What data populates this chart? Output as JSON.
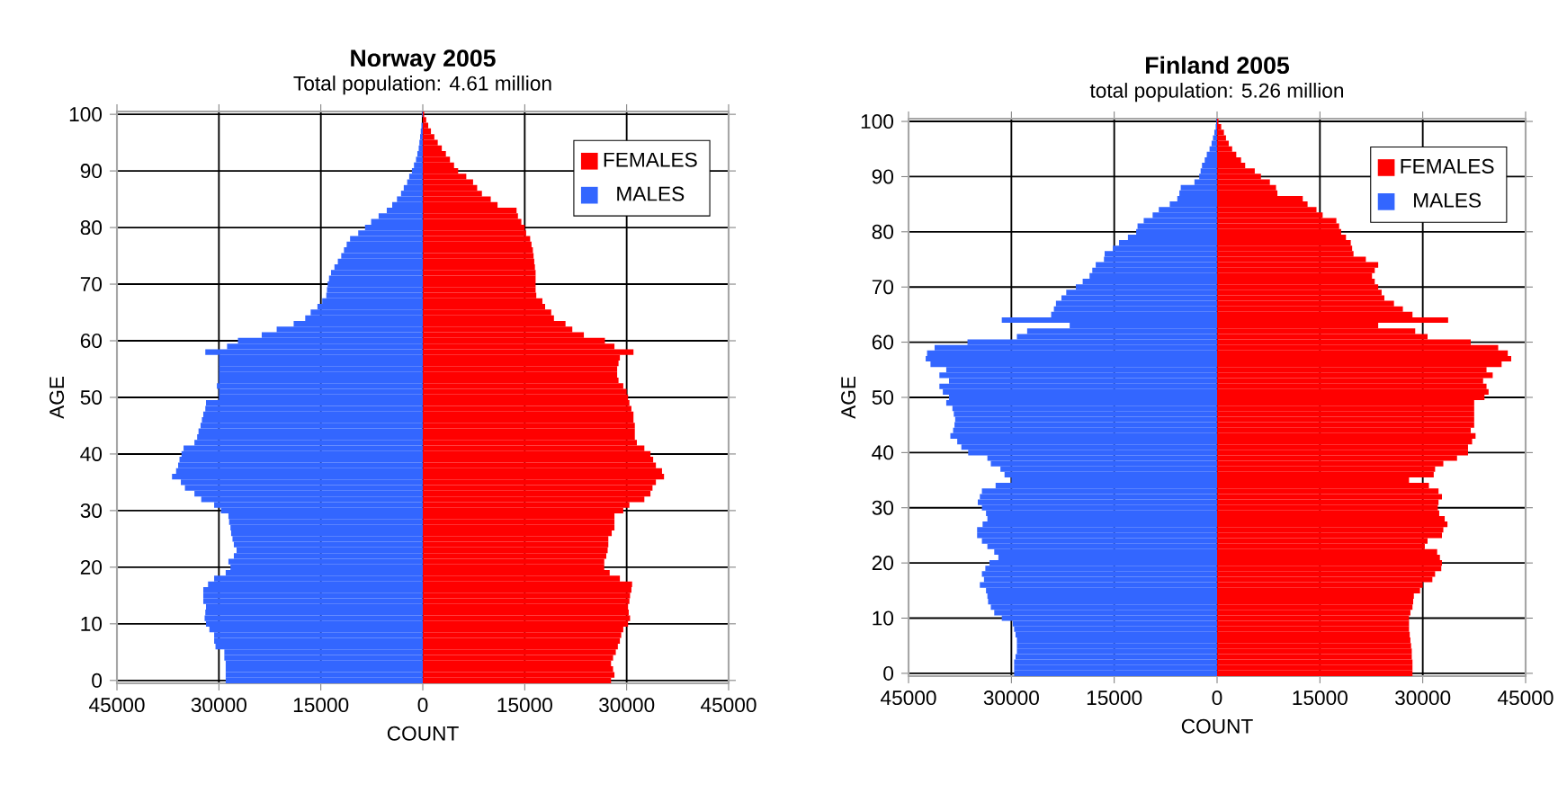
{
  "chart_data": [
    {
      "type": "bar",
      "orientation": "horizontal",
      "stacked": true,
      "title": "Norway 2005",
      "subtitle": "Total population: 4.61 million",
      "xlabel": "COUNT",
      "ylabel": "AGE",
      "x": [
        0,
        1,
        2,
        3,
        4,
        5,
        6,
        7,
        8,
        9,
        10,
        11,
        12,
        13,
        14,
        15,
        16,
        17,
        18,
        19,
        20,
        21,
        22,
        23,
        24,
        25,
        26,
        27,
        28,
        29,
        30,
        31,
        32,
        33,
        34,
        35,
        36,
        37,
        38,
        39,
        40,
        41,
        42,
        43,
        44,
        45,
        46,
        47,
        48,
        49,
        50,
        51,
        52,
        53,
        54,
        55,
        56,
        57,
        58,
        59,
        60,
        61,
        62,
        63,
        64,
        65,
        66,
        67,
        68,
        69,
        70,
        71,
        72,
        73,
        74,
        75,
        76,
        77,
        78,
        79,
        80,
        81,
        82,
        83,
        84,
        85,
        86,
        87,
        88,
        89,
        90,
        91,
        92,
        93,
        94,
        95,
        96,
        97,
        98,
        99,
        100
      ],
      "series": [
        {
          "name": "FEMALES",
          "color": "#ff0000",
          "values": [
            27700,
            28200,
            28000,
            27700,
            28000,
            28400,
            28700,
            29000,
            29200,
            29500,
            30200,
            30500,
            30300,
            30200,
            30400,
            30500,
            30700,
            30800,
            29000,
            27500,
            26700,
            26700,
            27000,
            27200,
            27300,
            27300,
            27800,
            28200,
            28200,
            28200,
            29500,
            30400,
            32600,
            33500,
            33800,
            34300,
            35500,
            35200,
            34300,
            33900,
            33500,
            32600,
            31500,
            31200,
            31200,
            31200,
            31000,
            31000,
            30700,
            30400,
            30200,
            30000,
            29500,
            28800,
            28600,
            28600,
            28800,
            29000,
            31000,
            28200,
            26800,
            23700,
            22000,
            21000,
            19300,
            18900,
            18000,
            17600,
            16700,
            16600,
            16600,
            16600,
            16600,
            16500,
            16400,
            16300,
            16200,
            16000,
            15800,
            15200,
            15000,
            14500,
            14000,
            13800,
            11000,
            10000,
            8700,
            8000,
            7400,
            6400,
            5200,
            4600,
            4000,
            3400,
            2800,
            2200,
            1700,
            1200,
            800,
            500,
            200
          ]
        },
        {
          "name": "MALES",
          "color": "#3366ff",
          "values": [
            -29000,
            -29000,
            -29000,
            -29000,
            -29200,
            -29200,
            -30500,
            -30700,
            -30700,
            -31400,
            -31900,
            -32100,
            -32000,
            -31900,
            -32300,
            -32300,
            -32300,
            -31600,
            -30700,
            -29000,
            -28300,
            -28600,
            -27800,
            -27400,
            -27800,
            -28000,
            -28200,
            -28300,
            -28500,
            -28600,
            -29700,
            -30700,
            -32600,
            -33600,
            -35000,
            -35600,
            -36900,
            -36300,
            -36000,
            -35800,
            -35500,
            -35200,
            -33600,
            -33200,
            -33000,
            -32700,
            -32500,
            -32300,
            -32000,
            -31900,
            -30000,
            -30000,
            -30300,
            -30000,
            -30000,
            -30000,
            -30000,
            -30000,
            -32000,
            -28800,
            -27200,
            -23700,
            -21500,
            -19000,
            -17300,
            -16500,
            -15500,
            -14800,
            -14200,
            -14100,
            -14000,
            -13800,
            -13500,
            -13000,
            -12500,
            -12000,
            -11600,
            -11200,
            -10700,
            -9500,
            -8500,
            -7600,
            -6500,
            -5300,
            -4500,
            -3800,
            -3200,
            -2800,
            -2300,
            -2000,
            -1600,
            -1300,
            -1000,
            -800,
            -600,
            -500,
            -400,
            -300,
            -200,
            null,
            -100
          ]
        }
      ],
      "xlim": [
        -45000,
        45000
      ],
      "xticks": [
        {
          "value": -45000,
          "label": "45000"
        },
        {
          "value": -30000,
          "label": "30000"
        },
        {
          "value": -15000,
          "label": "15000"
        },
        0,
        15000,
        30000,
        45000
      ],
      "ylim": [
        -0.5,
        100.5
      ],
      "yticks": [
        0,
        10,
        20,
        30,
        40,
        50,
        60,
        70,
        80,
        90,
        100
      ],
      "grid": true,
      "legend": "top right"
    },
    {
      "type": "bar",
      "orientation": "horizontal",
      "stacked": true,
      "title": "Finland 2005",
      "subtitle": "total population: 5.26 million",
      "xlabel": "COUNT",
      "ylabel": "AGE",
      "x": [
        0,
        1,
        2,
        3,
        4,
        5,
        6,
        7,
        8,
        9,
        10,
        11,
        12,
        13,
        14,
        15,
        16,
        17,
        18,
        19,
        20,
        21,
        22,
        23,
        24,
        25,
        26,
        27,
        28,
        29,
        30,
        31,
        32,
        33,
        34,
        35,
        36,
        37,
        38,
        39,
        40,
        41,
        42,
        43,
        44,
        45,
        46,
        47,
        48,
        49,
        50,
        51,
        52,
        53,
        54,
        55,
        56,
        57,
        58,
        59,
        60,
        61,
        62,
        63,
        64,
        65,
        66,
        67,
        68,
        69,
        70,
        71,
        72,
        73,
        74,
        75,
        76,
        77,
        78,
        79,
        80,
        81,
        82,
        83,
        84,
        85,
        86,
        87,
        88,
        89,
        90,
        91,
        92,
        93,
        94,
        95,
        96,
        97,
        98,
        99,
        100
      ],
      "series": [
        {
          "name": "FEMALES",
          "color": "#ff0000",
          "values": [
            28500,
            28500,
            28500,
            28400,
            28400,
            28300,
            28200,
            28100,
            28000,
            28000,
            28000,
            28200,
            28500,
            28600,
            28700,
            29600,
            30000,
            31400,
            31800,
            32700,
            32800,
            32500,
            32100,
            30300,
            30700,
            32800,
            33000,
            33600,
            33200,
            32400,
            32200,
            32300,
            32800,
            32300,
            30900,
            28000,
            31600,
            31800,
            33000,
            35000,
            36600,
            36600,
            37200,
            37700,
            37000,
            37500,
            37500,
            37500,
            37500,
            37500,
            39000,
            39600,
            39300,
            38800,
            40200,
            39300,
            41500,
            42900,
            42400,
            41000,
            37000,
            30700,
            28900,
            23500,
            33700,
            28500,
            27100,
            25800,
            24400,
            24000,
            23500,
            23000,
            22600,
            23000,
            23500,
            21700,
            19900,
            19700,
            19500,
            18800,
            18100,
            17800,
            17400,
            15400,
            14500,
            13200,
            12500,
            8800,
            8600,
            7700,
            6400,
            5500,
            4100,
            3500,
            2800,
            2200,
            1700,
            1300,
            1000,
            600,
            200
          ]
        },
        {
          "name": "MALES",
          "color": "#3366ff",
          "values": [
            -29600,
            -29600,
            -29600,
            -29400,
            -29200,
            -29200,
            -29200,
            -29400,
            -29600,
            -29800,
            -31400,
            -32500,
            -33000,
            -33400,
            -33500,
            -33700,
            -34600,
            -34000,
            -34300,
            -33800,
            -33200,
            -31900,
            -32500,
            -33500,
            -34300,
            -35000,
            -35000,
            -34200,
            -33500,
            -33700,
            -34300,
            -34900,
            -34600,
            -34300,
            -32300,
            -30000,
            -31000,
            -31600,
            -33000,
            -33500,
            -36300,
            -37300,
            -37900,
            -38900,
            -38500,
            -38300,
            -38200,
            -38400,
            -38600,
            -39500,
            -39100,
            -40000,
            -40500,
            -39100,
            -40500,
            -39500,
            -41800,
            -42500,
            -42300,
            -41200,
            -36400,
            -29200,
            -27700,
            -21500,
            -31400,
            -24200,
            -23800,
            -23500,
            -22700,
            -22000,
            -20600,
            -19600,
            -18600,
            -18200,
            -17700,
            -16500,
            -16400,
            -15200,
            -14300,
            -13000,
            -11800,
            -11600,
            -10700,
            -9400,
            -8500,
            -6900,
            -5800,
            -5500,
            -5300,
            -3300,
            -2600,
            -2400,
            -2200,
            -1800,
            -1500,
            -1100,
            -800,
            -600,
            -400,
            -200,
            -100
          ]
        }
      ],
      "xlim": [
        -45000,
        45000
      ],
      "xticks": [
        {
          "value": -45000,
          "label": "45000"
        },
        {
          "value": -30000,
          "label": "30000"
        },
        {
          "value": -15000,
          "label": "15000"
        },
        0,
        15000,
        30000,
        45000
      ],
      "ylim": [
        -0.5,
        100.5
      ],
      "yticks": [
        0,
        10,
        20,
        30,
        40,
        50,
        60,
        70,
        80,
        90,
        100
      ],
      "grid": true,
      "legend": "top right"
    }
  ]
}
